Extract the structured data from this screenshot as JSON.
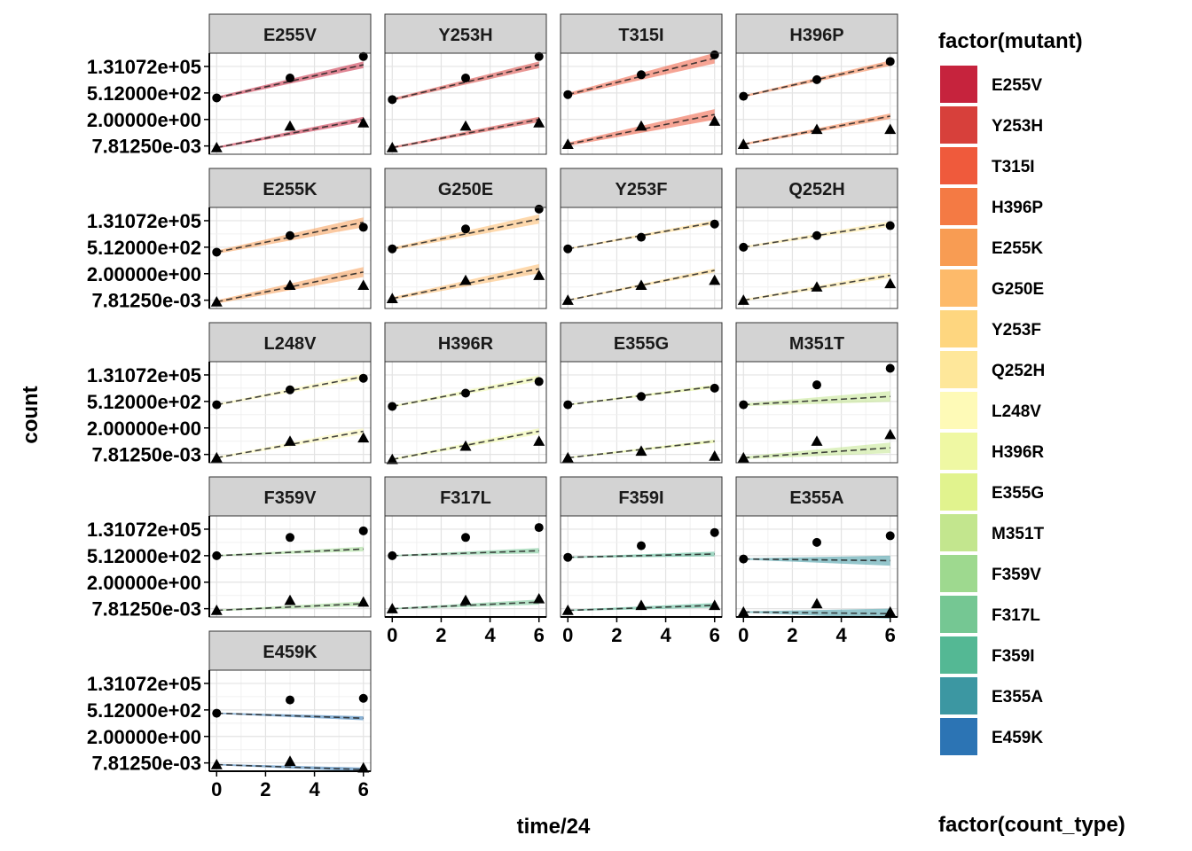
{
  "chart_data": {
    "type": "scatter",
    "xlabel": "time/24",
    "ylabel": "count",
    "y_scale": "log2",
    "x_ticks": [
      0,
      2,
      4,
      6
    ],
    "y_tick_labels": [
      "1.31072e+05",
      "5.12000e+02",
      "2.00000e+00",
      "7.81250e-03"
    ],
    "y_ticks_log2": [
      17,
      9,
      1,
      -7
    ],
    "ylim_log2": [
      -9.5,
      21
    ],
    "xlim": [
      -0.3,
      6.3
    ],
    "grid": true,
    "legend_fill_title": "factor(mutant)",
    "legend_shape_title": "factor(count_type)",
    "legend_placement": "right",
    "series_markers": [
      "circle",
      "triangle"
    ],
    "panels": [
      {
        "mutant": "E255V",
        "color": "#C6233D",
        "circle": {
          "x": [
            0,
            3,
            6
          ],
          "log2y": [
            7.5,
            13.5,
            20.0
          ],
          "fit": [
            7.5,
            17.5
          ],
          "band": [
            0.4,
            1.0
          ]
        },
        "triangle": {
          "x": [
            0,
            3,
            6
          ],
          "log2y": [
            -7.5,
            -1.0,
            0.0
          ],
          "fit": [
            -7.5,
            1.0
          ],
          "band": [
            0.3,
            0.8
          ]
        }
      },
      {
        "mutant": "Y253H",
        "color": "#D7403B",
        "circle": {
          "x": [
            0,
            3,
            6
          ],
          "log2y": [
            7.0,
            13.5,
            20.0
          ],
          "fit": [
            7.0,
            17.5
          ],
          "band": [
            0.4,
            1.0
          ]
        },
        "triangle": {
          "x": [
            0,
            3,
            6
          ],
          "log2y": [
            -7.5,
            -1.0,
            0.0
          ],
          "fit": [
            -7.5,
            1.0
          ],
          "band": [
            0.3,
            0.8
          ]
        }
      },
      {
        "mutant": "T315I",
        "color": "#EF5A3C",
        "circle": {
          "x": [
            0,
            3,
            6
          ],
          "log2y": [
            8.5,
            14.5,
            20.5
          ],
          "fit": [
            8.5,
            19.5
          ],
          "band": [
            0.5,
            1.6
          ]
        },
        "triangle": {
          "x": [
            0,
            3,
            6
          ],
          "log2y": [
            -6.5,
            -1.0,
            0.5
          ],
          "fit": [
            -6.5,
            2.5
          ],
          "band": [
            0.5,
            1.6
          ]
        }
      },
      {
        "mutant": "H396P",
        "color": "#F47A44",
        "circle": {
          "x": [
            0,
            3,
            6
          ],
          "log2y": [
            8.0,
            13.0,
            18.5
          ],
          "fit": [
            8.0,
            18.0
          ],
          "band": [
            0.3,
            0.8
          ]
        },
        "triangle": {
          "x": [
            0,
            3,
            6
          ],
          "log2y": [
            -6.5,
            -2.0,
            -2.0
          ],
          "fit": [
            -6.5,
            2.0
          ],
          "band": [
            0.3,
            0.8
          ]
        }
      },
      {
        "mutant": "E255K",
        "color": "#F89C53",
        "circle": {
          "x": [
            0,
            3,
            6
          ],
          "log2y": [
            7.5,
            12.5,
            15.0
          ],
          "fit": [
            7.5,
            16.5
          ],
          "band": [
            0.5,
            1.5
          ]
        },
        "triangle": {
          "x": [
            0,
            3,
            6
          ],
          "log2y": [
            -7.5,
            -2.5,
            -2.5
          ],
          "fit": [
            -7.5,
            1.5
          ],
          "band": [
            0.5,
            1.5
          ]
        }
      },
      {
        "mutant": "G250E",
        "color": "#FDBA6A",
        "circle": {
          "x": [
            0,
            3,
            6
          ],
          "log2y": [
            8.5,
            14.5,
            20.5
          ],
          "fit": [
            8.5,
            17.5
          ],
          "band": [
            0.4,
            1.4
          ]
        },
        "triangle": {
          "x": [
            0,
            3,
            6
          ],
          "log2y": [
            -6.5,
            -1.0,
            0.5
          ],
          "fit": [
            -6.5,
            2.5
          ],
          "band": [
            0.4,
            1.4
          ]
        }
      },
      {
        "mutant": "Y253F",
        "color": "#FED67F",
        "circle": {
          "x": [
            0,
            3,
            6
          ],
          "log2y": [
            8.5,
            12.0,
            16.0
          ],
          "fit": [
            8.5,
            16.5
          ],
          "band": [
            0.2,
            0.6
          ]
        },
        "triangle": {
          "x": [
            0,
            3,
            6
          ],
          "log2y": [
            -7.0,
            -2.5,
            -1.0
          ],
          "fit": [
            -7.0,
            2.0
          ],
          "band": [
            0.2,
            0.6
          ]
        }
      },
      {
        "mutant": "Q252H",
        "color": "#FEE79A",
        "circle": {
          "x": [
            0,
            3,
            6
          ],
          "log2y": [
            9.0,
            12.5,
            15.5
          ],
          "fit": [
            9.0,
            16.0
          ],
          "band": [
            0.3,
            0.8
          ]
        },
        "triangle": {
          "x": [
            0,
            3,
            6
          ],
          "log2y": [
            -7.0,
            -3.0,
            -2.0
          ],
          "fit": [
            -7.0,
            0.5
          ],
          "band": [
            0.3,
            0.8
          ]
        }
      },
      {
        "mutant": "L248V",
        "color": "#FEFAB7",
        "circle": {
          "x": [
            0,
            3,
            6
          ],
          "log2y": [
            8.0,
            12.5,
            16.0
          ],
          "fit": [
            8.0,
            16.5
          ],
          "band": [
            0.3,
            0.9
          ]
        },
        "triangle": {
          "x": [
            0,
            3,
            6
          ],
          "log2y": [
            -8.0,
            -3.0,
            -2.0
          ],
          "fit": [
            -8.0,
            0.0
          ],
          "band": [
            0.3,
            0.9
          ]
        }
      },
      {
        "mutant": "H396R",
        "color": "#EFF8A3",
        "circle": {
          "x": [
            0,
            3,
            6
          ],
          "log2y": [
            7.5,
            11.5,
            15.0
          ],
          "fit": [
            7.5,
            16.0
          ],
          "band": [
            0.3,
            0.9
          ]
        },
        "triangle": {
          "x": [
            0,
            3,
            6
          ],
          "log2y": [
            -8.5,
            -4.5,
            -3.0
          ],
          "fit": [
            -8.5,
            0.0
          ],
          "band": [
            0.3,
            0.9
          ]
        }
      },
      {
        "mutant": "E355G",
        "color": "#E1F38E",
        "circle": {
          "x": [
            0,
            3,
            6
          ],
          "log2y": [
            8.0,
            10.5,
            13.0
          ],
          "fit": [
            8.0,
            13.5
          ],
          "band": [
            0.2,
            0.5
          ]
        },
        "triangle": {
          "x": [
            0,
            3,
            6
          ],
          "log2y": [
            -8.0,
            -6.0,
            -7.5
          ],
          "fit": [
            -8.0,
            -3.0
          ],
          "band": [
            0.2,
            0.5
          ]
        }
      },
      {
        "mutant": "M351T",
        "color": "#C3E68E",
        "circle": {
          "x": [
            0,
            3,
            6
          ],
          "log2y": [
            8.0,
            14.0,
            19.0
          ],
          "fit": [
            8.0,
            10.5
          ],
          "band": [
            0.4,
            1.6
          ]
        },
        "triangle": {
          "x": [
            0,
            3,
            6
          ],
          "log2y": [
            -8.0,
            -3.0,
            -1.0
          ],
          "fit": [
            -8.0,
            -5.0
          ],
          "band": [
            0.4,
            1.6
          ]
        }
      },
      {
        "mutant": "F359V",
        "color": "#9ED98F",
        "circle": {
          "x": [
            0,
            3,
            6
          ],
          "log2y": [
            9.0,
            14.5,
            16.5
          ],
          "fit": [
            9.0,
            11.0
          ],
          "band": [
            0.2,
            0.7
          ]
        },
        "triangle": {
          "x": [
            0,
            3,
            6
          ],
          "log2y": [
            -7.5,
            -4.5,
            -5.0
          ],
          "fit": [
            -7.5,
            -5.5
          ],
          "band": [
            0.2,
            0.7
          ]
        }
      },
      {
        "mutant": "F317L",
        "color": "#75C793",
        "circle": {
          "x": [
            0,
            3,
            6
          ],
          "log2y": [
            9.0,
            14.5,
            17.5
          ],
          "fit": [
            9.0,
            10.5
          ],
          "band": [
            0.2,
            0.8
          ]
        },
        "triangle": {
          "x": [
            0,
            3,
            6
          ],
          "log2y": [
            -7.0,
            -4.5,
            -4.0
          ],
          "fit": [
            -7.0,
            -5.0
          ],
          "band": [
            0.2,
            0.8
          ]
        }
      },
      {
        "mutant": "F359I",
        "color": "#54B894",
        "circle": {
          "x": [
            0,
            3,
            6
          ],
          "log2y": [
            8.5,
            12.0,
            16.0
          ],
          "fit": [
            8.5,
            9.5
          ],
          "band": [
            0.2,
            0.7
          ]
        },
        "triangle": {
          "x": [
            0,
            3,
            6
          ],
          "log2y": [
            -7.5,
            -6.0,
            -6.0
          ],
          "fit": [
            -7.5,
            -6.0
          ],
          "band": [
            0.2,
            0.7
          ]
        }
      },
      {
        "mutant": "E355A",
        "color": "#3C97A2",
        "circle": {
          "x": [
            0,
            3,
            6
          ],
          "log2y": [
            8.0,
            13.0,
            15.0
          ],
          "fit": [
            8.0,
            7.5
          ],
          "band": [
            0.2,
            1.5
          ]
        },
        "triangle": {
          "x": [
            0,
            3,
            6
          ],
          "log2y": [
            -8.0,
            -5.5,
            -8.0
          ],
          "fit": [
            -8.0,
            -8.5
          ],
          "band": [
            0.2,
            1.5
          ]
        }
      },
      {
        "mutant": "E459K",
        "color": "#2C74B4",
        "circle": {
          "x": [
            0,
            3,
            6
          ],
          "log2y": [
            8.0,
            12.0,
            12.5
          ],
          "fit": [
            8.0,
            6.5
          ],
          "band": [
            0.2,
            0.6
          ]
        },
        "triangle": {
          "x": [
            0,
            3,
            6
          ],
          "log2y": [
            -7.5,
            -6.5,
            -8.5
          ],
          "fit": [
            -7.5,
            -9.0
          ],
          "band": [
            0.2,
            0.6
          ]
        }
      }
    ]
  }
}
